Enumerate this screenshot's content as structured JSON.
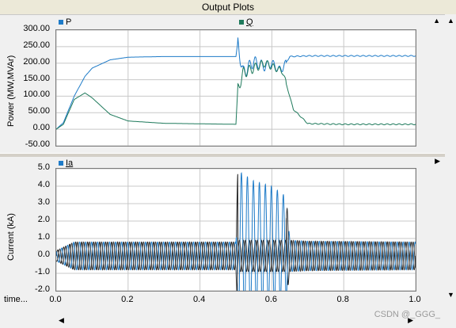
{
  "window": {
    "title": "Output Plots"
  },
  "top_plot": {
    "ylabel": "Power (MW,MVAr)",
    "legend": [
      {
        "name": "P",
        "color": "#1e7bc8"
      },
      {
        "name": "Q",
        "color": "#1f7a5c"
      }
    ],
    "yticks": [
      "300.00",
      "250.00",
      "200.00",
      "150.00",
      "100.00",
      "50.00",
      "0.00",
      "-50.00"
    ],
    "ylim": [
      -50,
      300
    ]
  },
  "bottom_plot": {
    "ylabel": "Current (kA)",
    "legend": [
      {
        "name": "Ia",
        "color": "#1e7bc8"
      }
    ],
    "yticks": [
      "5.0",
      "4.0",
      "3.0",
      "2.0",
      "1.0",
      "0.0",
      "-1.0",
      "-2.0"
    ],
    "ylim": [
      -2,
      5
    ]
  },
  "xaxis": {
    "label": "time...",
    "ticks": [
      "0.0",
      "0.2",
      "0.4",
      "0.6",
      "0.8",
      "1.0"
    ],
    "xlim": [
      0,
      1
    ]
  },
  "watermark": "CSDN @_GGG_",
  "chart_data": [
    {
      "type": "line",
      "ylabel": "Power (MW,MVAr)",
      "xlim": [
        0,
        1
      ],
      "ylim": [
        -50,
        300
      ],
      "series": [
        {
          "name": "P",
          "x": [
            0,
            0.02,
            0.05,
            0.08,
            0.1,
            0.15,
            0.2,
            0.3,
            0.5,
            0.505,
            0.52,
            0.55,
            0.58,
            0.6,
            0.62,
            0.63,
            0.65,
            0.7,
            0.8,
            1.0
          ],
          "values": [
            0,
            20,
            100,
            160,
            185,
            210,
            218,
            220,
            220,
            262,
            170,
            205,
            190,
            200,
            180,
            185,
            220,
            222,
            222,
            222
          ]
        },
        {
          "name": "Q",
          "x": [
            0,
            0.02,
            0.05,
            0.08,
            0.1,
            0.15,
            0.2,
            0.3,
            0.5,
            0.505,
            0.52,
            0.55,
            0.58,
            0.6,
            0.62,
            0.63,
            0.66,
            0.7,
            0.8,
            1.0
          ],
          "values": [
            0,
            15,
            90,
            110,
            95,
            45,
            25,
            18,
            15,
            120,
            170,
            185,
            200,
            190,
            180,
            175,
            60,
            17,
            15,
            15
          ]
        }
      ]
    },
    {
      "type": "line",
      "ylabel": "Current (kA)",
      "xlim": [
        0,
        1
      ],
      "ylim": [
        -2,
        5
      ],
      "series": [
        {
          "name": "Ia",
          "x": [
            0,
            0.05,
            0.5,
            0.505,
            0.55,
            0.6,
            0.64,
            0.65,
            0.7,
            1.0
          ],
          "amplitude": [
            0.3,
            0.8,
            0.8,
            4.3,
            3.8,
            3.5,
            3.0,
            0.9,
            0.85,
            0.8
          ],
          "offset": [
            0,
            0,
            0,
            0.6,
            0.5,
            0.5,
            0.4,
            0,
            0,
            0
          ]
        }
      ]
    }
  ]
}
